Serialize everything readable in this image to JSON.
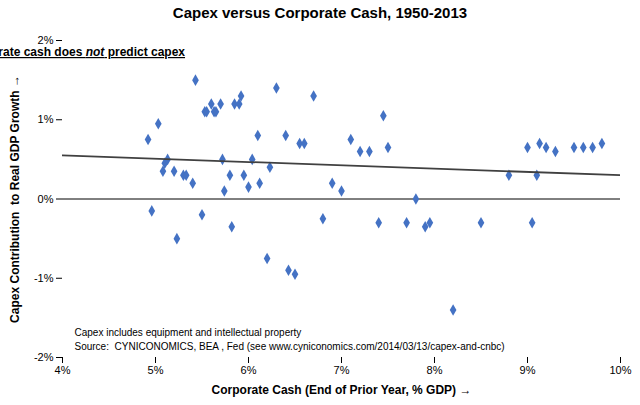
{
  "chart_data": {
    "type": "scatter",
    "title": "Capex versus Corporate Cash, 1950-2013",
    "xlabel": "Corporate Cash (End of Prior Year, % GDP)",
    "ylabel": "Capex Contribution  to Real GDP Growth",
    "annotation": [
      "Corporate cash does ",
      "not",
      " predict capex"
    ],
    "notes": [
      "Capex includes equipment and intellectual property",
      "Source:  CYNICONOMICS, BEA , Fed (see www.cyniconomics.com/2014/03/13/capex-and-cnbc)"
    ],
    "xlim": [
      0.04,
      0.1
    ],
    "ylim": [
      -0.02,
      0.02
    ],
    "xticks": [
      {
        "value": 0.04,
        "label": "4%"
      },
      {
        "value": 0.05,
        "label": "5%"
      },
      {
        "value": 0.06,
        "label": "6%"
      },
      {
        "value": 0.07,
        "label": "7%"
      },
      {
        "value": 0.08,
        "label": "8%"
      },
      {
        "value": 0.09,
        "label": "9%"
      },
      {
        "value": 0.1,
        "label": "10%"
      }
    ],
    "yticks": [
      {
        "value": -0.02,
        "label": "-2%"
      },
      {
        "value": -0.01,
        "label": "-1%"
      },
      {
        "value": 0.0,
        "label": "0%"
      },
      {
        "value": 0.01,
        "label": "1%"
      },
      {
        "value": 0.02,
        "label": "2%"
      }
    ],
    "grid": false,
    "hlines": [
      0
    ],
    "series": [
      {
        "type": "scatter",
        "marker": "diamond",
        "color": "#4472c4",
        "x": [
          0.0492,
          0.0496,
          0.0503,
          0.0508,
          0.051,
          0.0513,
          0.052,
          0.0523,
          0.053,
          0.0533,
          0.054,
          0.0543,
          0.055,
          0.0553,
          0.0555,
          0.056,
          0.0563,
          0.0565,
          0.057,
          0.0572,
          0.0574,
          0.058,
          0.0582,
          0.0585,
          0.059,
          0.0592,
          0.0595,
          0.06,
          0.0604,
          0.061,
          0.0612,
          0.062,
          0.0623,
          0.063,
          0.064,
          0.0643,
          0.065,
          0.0655,
          0.066,
          0.067,
          0.068,
          0.069,
          0.07,
          0.071,
          0.072,
          0.073,
          0.074,
          0.0745,
          0.075,
          0.077,
          0.078,
          0.079,
          0.0795,
          0.082,
          0.085,
          0.088,
          0.09,
          0.0905,
          0.091,
          0.0913,
          0.092,
          0.093,
          0.095,
          0.096,
          0.097,
          0.098
        ],
        "values": [
          0.0075,
          -0.0015,
          0.0095,
          0.0035,
          0.0045,
          0.005,
          0.0035,
          -0.005,
          0.003,
          0.003,
          0.002,
          0.015,
          -0.002,
          0.011,
          0.011,
          0.012,
          0.011,
          0.011,
          0.012,
          0.005,
          0.001,
          0.003,
          -0.0035,
          0.012,
          0.012,
          0.013,
          0.003,
          0.0015,
          0.005,
          0.008,
          0.002,
          -0.0075,
          0.004,
          0.014,
          0.008,
          -0.009,
          -0.0095,
          0.007,
          0.007,
          0.013,
          -0.0025,
          0.002,
          0.001,
          0.0075,
          0.006,
          0.006,
          -0.003,
          0.0105,
          0.0065,
          -0.003,
          0.0,
          -0.0035,
          -0.003,
          -0.014,
          -0.003,
          0.003,
          0.0065,
          -0.003,
          0.003,
          0.007,
          0.0065,
          0.006,
          0.0065,
          0.0065,
          0.0065,
          0.007
        ]
      },
      {
        "type": "line",
        "color": "#404040",
        "x": [
          0.04,
          0.1
        ],
        "values": [
          0.0055,
          0.003
        ]
      }
    ]
  }
}
